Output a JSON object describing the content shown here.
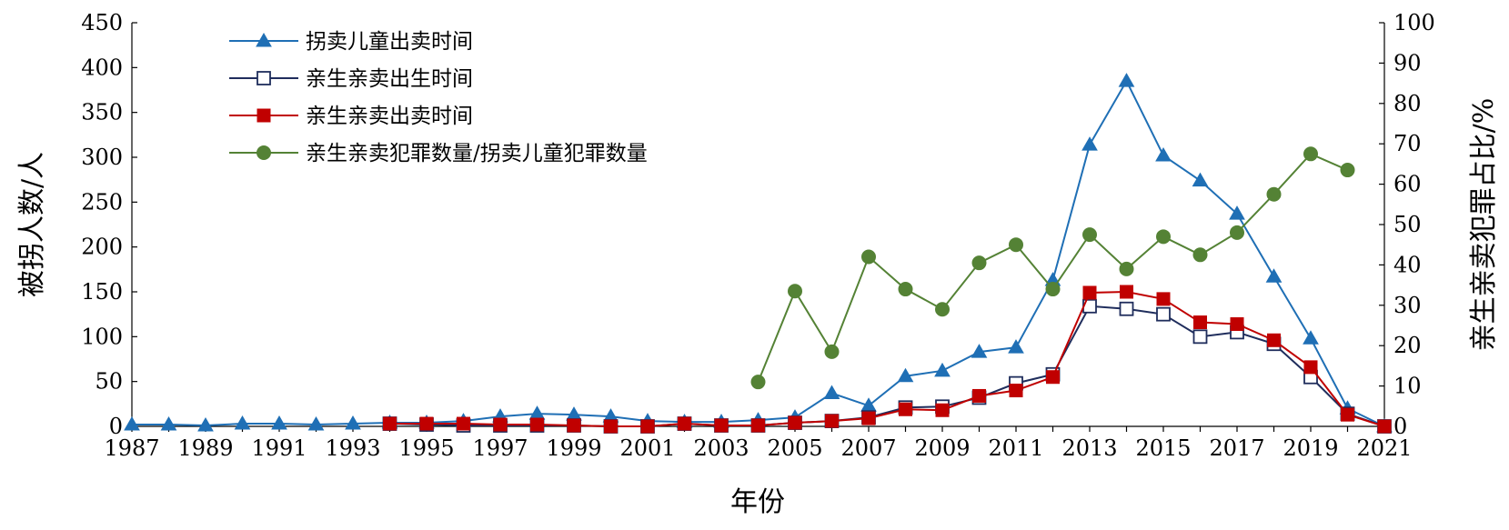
{
  "chart_data": {
    "type": "line",
    "xlabel": "年份",
    "ylabel_left": "被拐人数/人",
    "ylabel_right": "亲生亲卖犯罪占比/%",
    "x": [
      1987,
      1988,
      1989,
      1990,
      1991,
      1992,
      1993,
      1994,
      1995,
      1996,
      1997,
      1998,
      1999,
      2000,
      2001,
      2002,
      2003,
      2004,
      2005,
      2006,
      2007,
      2008,
      2009,
      2010,
      2011,
      2012,
      2013,
      2014,
      2015,
      2016,
      2017,
      2018,
      2019,
      2020,
      2021
    ],
    "x_tick_labels": [
      "1987",
      "1989",
      "1991",
      "1993",
      "1995",
      "1997",
      "1999",
      "2001",
      "2003",
      "2005",
      "2007",
      "2009",
      "2011",
      "2013",
      "2015",
      "2017",
      "2019",
      "2021"
    ],
    "y_left_ticks": [
      "0",
      "50",
      "100",
      "150",
      "200",
      "250",
      "300",
      "350",
      "400",
      "450"
    ],
    "y_right_ticks": [
      "0",
      "10",
      "20",
      "30",
      "40",
      "50",
      "60",
      "70",
      "80",
      "90",
      "100"
    ],
    "ylim_left": [
      0,
      450
    ],
    "ylim_right": [
      0,
      100
    ],
    "xlim": [
      1987,
      2021
    ],
    "legend_position": "top-left",
    "series": [
      {
        "name": "拐卖儿童出卖时间",
        "axis": "left",
        "color": "#1f6fb5",
        "marker": "triangle",
        "x": [
          1987,
          1988,
          1989,
          1990,
          1991,
          1992,
          1993,
          1994,
          1995,
          1996,
          1997,
          1998,
          1999,
          2000,
          2001,
          2002,
          2003,
          2004,
          2005,
          2006,
          2007,
          2008,
          2009,
          2010,
          2011,
          2012,
          2013,
          2014,
          2015,
          2016,
          2017,
          2018,
          2019,
          2020,
          2021
        ],
        "values": [
          2,
          2,
          1,
          3,
          3,
          2,
          3,
          4,
          4,
          6,
          11,
          14,
          13,
          11,
          6,
          5,
          5,
          7,
          10,
          37,
          23,
          56,
          62,
          83,
          88,
          163,
          314,
          385,
          302,
          274,
          237,
          167,
          98,
          20,
          0
        ]
      },
      {
        "name": "亲生亲卖出生时间",
        "axis": "left",
        "color": "#1f2d5c",
        "marker": "square-open",
        "x": [
          1994,
          1995,
          1996,
          1997,
          1998,
          1999,
          2000,
          2001,
          2002,
          2003,
          2004,
          2005,
          2006,
          2007,
          2008,
          2009,
          2010,
          2011,
          2012,
          2013,
          2014,
          2015,
          2016,
          2017,
          2018,
          2019,
          2020,
          2021
        ],
        "values": [
          3,
          2,
          1,
          1,
          1,
          1,
          0,
          0,
          3,
          1,
          1,
          4,
          6,
          10,
          21,
          22,
          32,
          48,
          58,
          134,
          131,
          125,
          100,
          105,
          92,
          55,
          14,
          0
        ]
      },
      {
        "name": "亲生亲卖出卖时间",
        "axis": "left",
        "color": "#c00000",
        "marker": "square",
        "x": [
          1994,
          1995,
          1996,
          1997,
          1998,
          1999,
          2000,
          2001,
          2002,
          2003,
          2004,
          2005,
          2006,
          2007,
          2008,
          2009,
          2010,
          2011,
          2012,
          2013,
          2014,
          2015,
          2016,
          2017,
          2018,
          2019,
          2020,
          2021
        ],
        "values": [
          3,
          3,
          3,
          2,
          2,
          1,
          0,
          0,
          3,
          1,
          1,
          4,
          6,
          9,
          19,
          18,
          34,
          40,
          55,
          149,
          150,
          142,
          116,
          114,
          96,
          66,
          13,
          0
        ]
      },
      {
        "name": "亲生亲卖犯罪数量/拐卖儿童犯罪数量",
        "axis": "right",
        "color": "#548235",
        "marker": "circle",
        "x": [
          2004,
          2005,
          2006,
          2007,
          2008,
          2009,
          2010,
          2011,
          2012,
          2013,
          2014,
          2015,
          2016,
          2017,
          2018,
          2019,
          2020
        ],
        "values": [
          11,
          33.5,
          18.5,
          42,
          34,
          29,
          40.5,
          45,
          34,
          47.5,
          39,
          47,
          42.5,
          48,
          57.5,
          67.5,
          63.5
        ]
      }
    ]
  }
}
